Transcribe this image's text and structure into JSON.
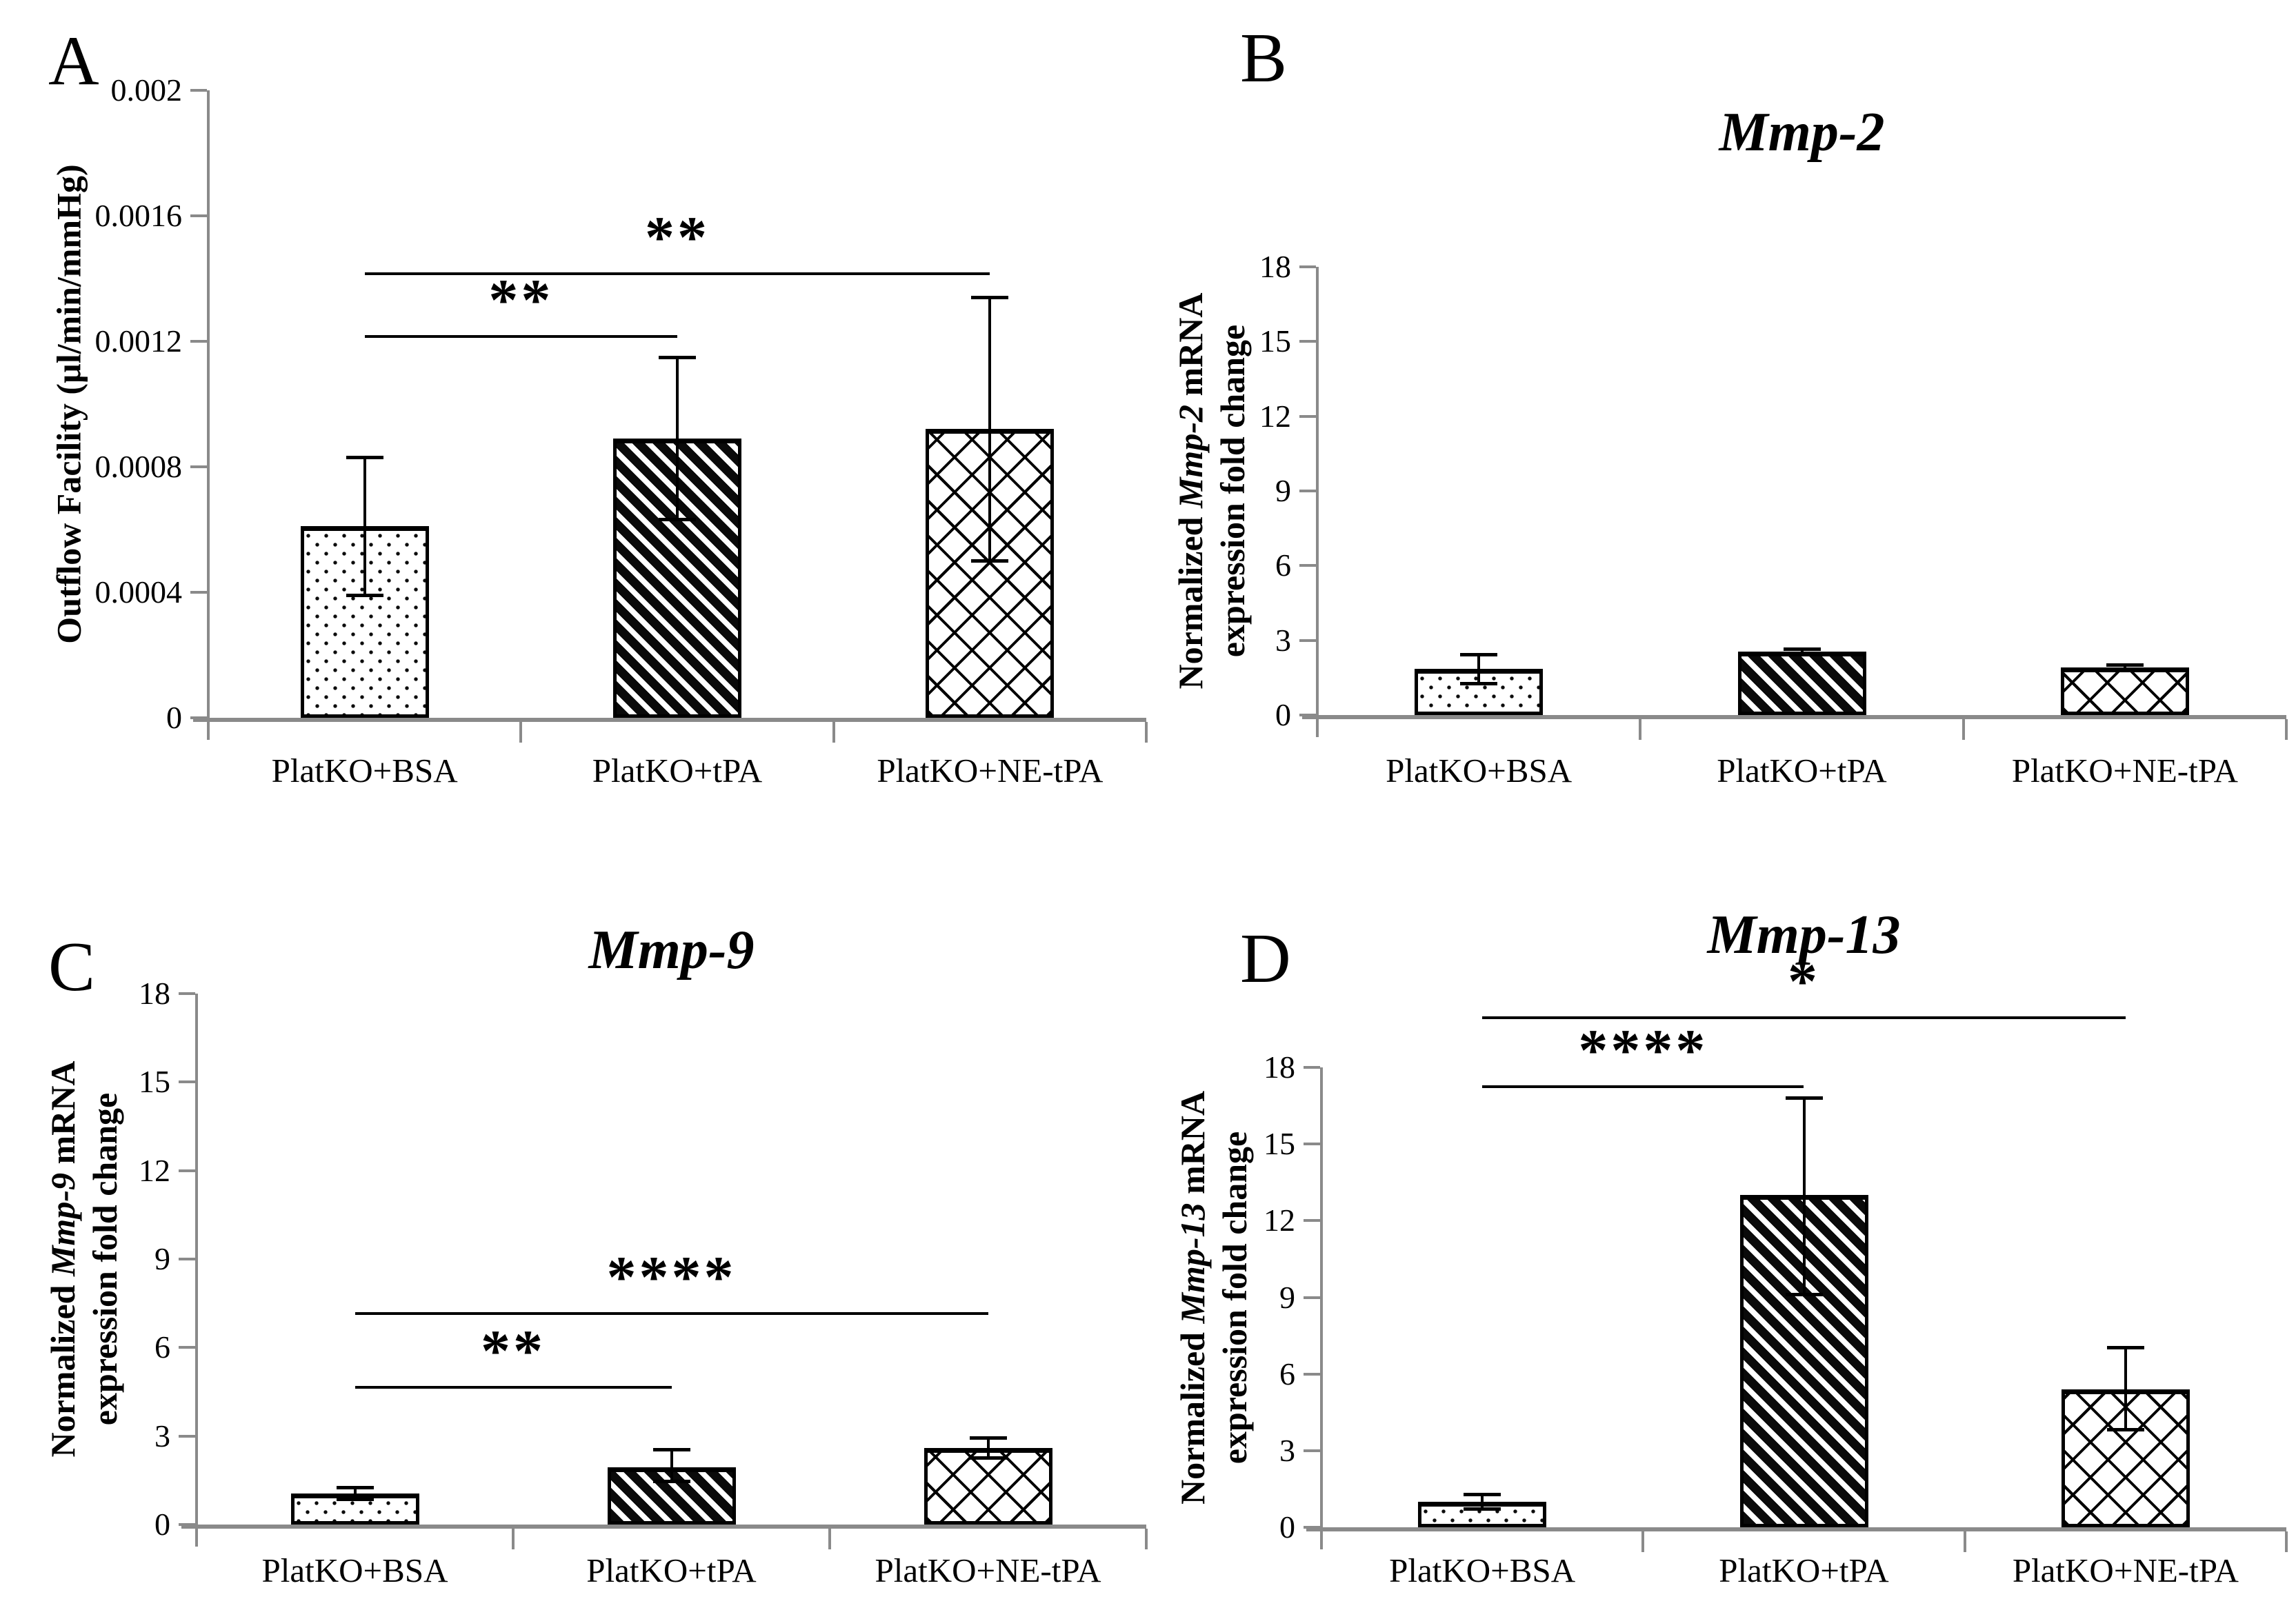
{
  "figure": {
    "background": "#ffffff",
    "axis_color": "#8a8a8a",
    "bar_edge_color": "#000000",
    "text_color": "#000000",
    "bar_fill": "#ffffff"
  },
  "chart_data": [
    {
      "panel_letter": "A",
      "type": "bar",
      "title": "",
      "ylabel": {
        "pre": "Outflow Facility (µl/min/mmHg)",
        "italic": "",
        "post": "",
        "line2": ""
      },
      "categories": [
        "PlatKO+BSA",
        "PlatKO+tPA",
        "PlatKO+NE-tPA"
      ],
      "values": [
        0.00061,
        0.00089,
        0.00092
      ],
      "error_up": [
        0.00022,
        0.00026,
        0.00042
      ],
      "error_down": [
        0.00022,
        0.00026,
        0.00042
      ],
      "ylim": [
        0,
        0.002
      ],
      "yticks": [
        {
          "v": 0,
          "label": "0"
        },
        {
          "v": 0.0004,
          "label": "0.0004"
        },
        {
          "v": 0.0008,
          "label": "0.0008"
        },
        {
          "v": 0.0012,
          "label": "0.0012"
        },
        {
          "v": 0.0016,
          "label": "0.0016"
        },
        {
          "v": 0.002,
          "label": "0.002"
        }
      ],
      "bar_patterns": [
        "dots",
        "diagonal-stripes",
        "diamond-crosshatch"
      ],
      "significance": [
        {
          "label": "**",
          "from": 0,
          "to": 1,
          "y": 0.00122
        },
        {
          "label": "**",
          "from": 0,
          "to": 2,
          "y": 0.00142
        }
      ],
      "grid": false,
      "legend": null
    },
    {
      "panel_letter": "B",
      "type": "bar",
      "title": "Mmp-2",
      "ylabel": {
        "pre": "Normalized ",
        "italic": "Mmp-2",
        "post": " mRNA",
        "line2": "expression fold change"
      },
      "categories": [
        "PlatKO+BSA",
        "PlatKO+tPA",
        "PlatKO+NE-tPA"
      ],
      "values": [
        1.85,
        2.55,
        1.9
      ],
      "error_up": [
        0.6,
        0.1,
        0.12
      ],
      "error_down": [
        0.6,
        0.1,
        0.12
      ],
      "ylim": [
        0,
        18
      ],
      "yticks": [
        {
          "v": 0,
          "label": "0"
        },
        {
          "v": 3,
          "label": "3"
        },
        {
          "v": 6,
          "label": "6"
        },
        {
          "v": 9,
          "label": "9"
        },
        {
          "v": 12,
          "label": "12"
        },
        {
          "v": 15,
          "label": "15"
        },
        {
          "v": 18,
          "label": "18"
        }
      ],
      "bar_patterns": [
        "dots",
        "diagonal-stripes",
        "diamond-crosshatch"
      ],
      "significance": [],
      "grid": false,
      "legend": null
    },
    {
      "panel_letter": "C",
      "type": "bar",
      "title": "Mmp-9",
      "ylabel": {
        "pre": "Normalized ",
        "italic": "Mmp-9",
        "post": " mRNA",
        "line2": "expression fold change"
      },
      "categories": [
        "PlatKO+BSA",
        "PlatKO+tPA",
        "PlatKO+NE-tPA"
      ],
      "values": [
        1.05,
        1.95,
        2.6
      ],
      "error_up": [
        0.22,
        0.6,
        0.35
      ],
      "error_down": [
        0.22,
        0.5,
        0.35
      ],
      "ylim": [
        0,
        18
      ],
      "yticks": [
        {
          "v": 0,
          "label": "0"
        },
        {
          "v": 3,
          "label": "3"
        },
        {
          "v": 6,
          "label": "6"
        },
        {
          "v": 9,
          "label": "9"
        },
        {
          "v": 12,
          "label": "12"
        },
        {
          "v": 15,
          "label": "15"
        },
        {
          "v": 18,
          "label": "18"
        }
      ],
      "bar_patterns": [
        "dots",
        "diagonal-stripes",
        "diamond-crosshatch"
      ],
      "significance": [
        {
          "label": "**",
          "from": 0,
          "to": 1,
          "y": 4.7
        },
        {
          "label": "****",
          "from": 0,
          "to": 2,
          "y": 7.2
        }
      ],
      "grid": false,
      "legend": null
    },
    {
      "panel_letter": "D",
      "type": "bar",
      "title": "Mmp-13",
      "ylabel": {
        "pre": "Normalized ",
        "italic": "Mmp-13",
        "post": " mRNA",
        "line2": "expression fold change"
      },
      "categories": [
        "PlatKO+BSA",
        "PlatKO+tPA",
        "PlatKO+NE-tPA"
      ],
      "values": [
        1.0,
        13.0,
        5.4
      ],
      "error_up": [
        0.3,
        3.8,
        1.65
      ],
      "error_down": [
        0.3,
        3.9,
        1.6
      ],
      "ylim": [
        0,
        18
      ],
      "yticks": [
        {
          "v": 0,
          "label": "0"
        },
        {
          "v": 3,
          "label": "3"
        },
        {
          "v": 6,
          "label": "6"
        },
        {
          "v": 9,
          "label": "9"
        },
        {
          "v": 12,
          "label": "12"
        },
        {
          "v": 15,
          "label": "15"
        },
        {
          "v": 18,
          "label": "18"
        }
      ],
      "bar_patterns": [
        "dots",
        "diagonal-stripes",
        "diamond-crosshatch"
      ],
      "significance": [
        {
          "label": "****",
          "from": 0,
          "to": 1,
          "y": 17.3
        },
        {
          "label": "*",
          "from": 0,
          "to": 2,
          "y": 20.0
        }
      ],
      "grid": false,
      "legend": null
    }
  ]
}
